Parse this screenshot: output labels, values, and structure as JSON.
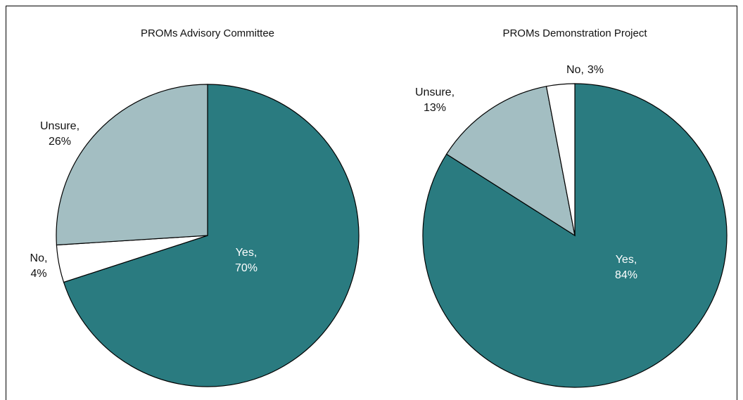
{
  "chart_data": [
    {
      "type": "pie",
      "title": "PROMs Advisory Committee",
      "categories": [
        "Yes,",
        "No,",
        "Unsure,"
      ],
      "values": [
        70,
        4,
        26
      ],
      "value_labels": [
        "70%",
        "4%",
        "26%"
      ],
      "colors": [
        "#2a7b80",
        "#ffffff",
        "#a3bec2"
      ]
    },
    {
      "type": "pie",
      "title": "PROMs Demonstration Project",
      "categories": [
        "Yes,",
        "Unsure,",
        "No,"
      ],
      "values": [
        84,
        13,
        3
      ],
      "value_labels": [
        "84%",
        "13%",
        "3%"
      ],
      "colors": [
        "#2a7b80",
        "#a3bec2",
        "#ffffff"
      ]
    }
  ]
}
